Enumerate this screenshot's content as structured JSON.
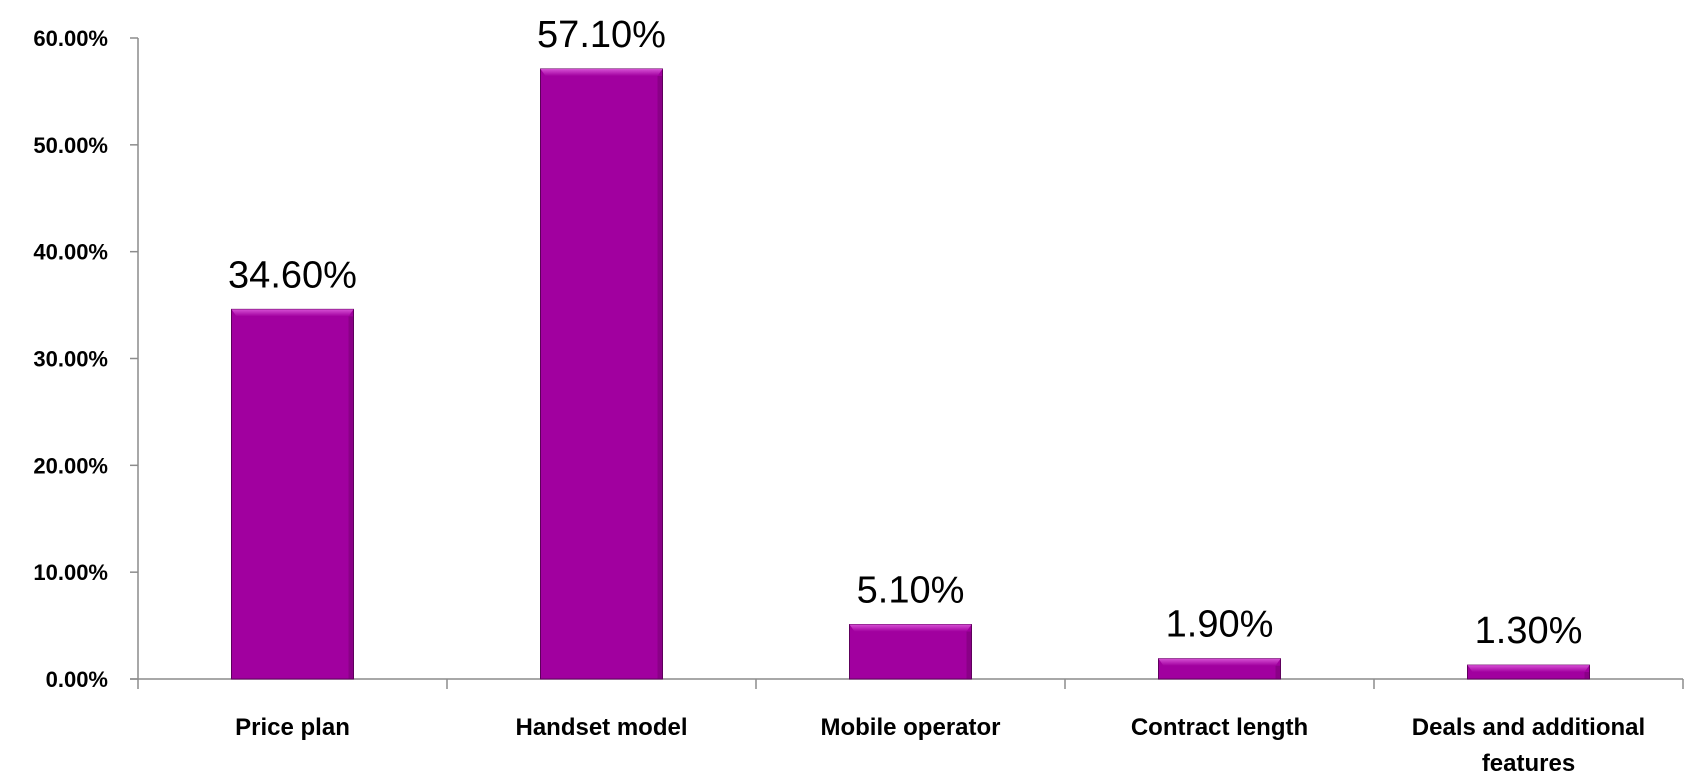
{
  "chart_data": {
    "type": "bar",
    "title": "",
    "xlabel": "",
    "ylabel": "",
    "categories": [
      [
        "Price plan"
      ],
      [
        "Handset model"
      ],
      [
        "Mobile operator"
      ],
      [
        "Contract length"
      ],
      [
        "Deals and additional",
        "features"
      ]
    ],
    "values": [
      34.6,
      57.1,
      5.1,
      1.9,
      1.3
    ],
    "data_labels": [
      "34.60%",
      "57.10%",
      "5.10%",
      "1.90%",
      "1.30%"
    ],
    "ylim": [
      0,
      60
    ],
    "yticks": [
      0,
      10,
      20,
      30,
      40,
      50,
      60
    ],
    "ytick_labels": [
      "0.00%",
      "10.00%",
      "20.00%",
      "30.00%",
      "40.00%",
      "50.00%",
      "60.00%"
    ],
    "grid": false,
    "legend": "none",
    "colors": {
      "bar_fill": "#a1009f",
      "bar_highlight": "#d64fd4",
      "bar_edge": "#5e005c",
      "axis": "#8c8c8c"
    }
  }
}
